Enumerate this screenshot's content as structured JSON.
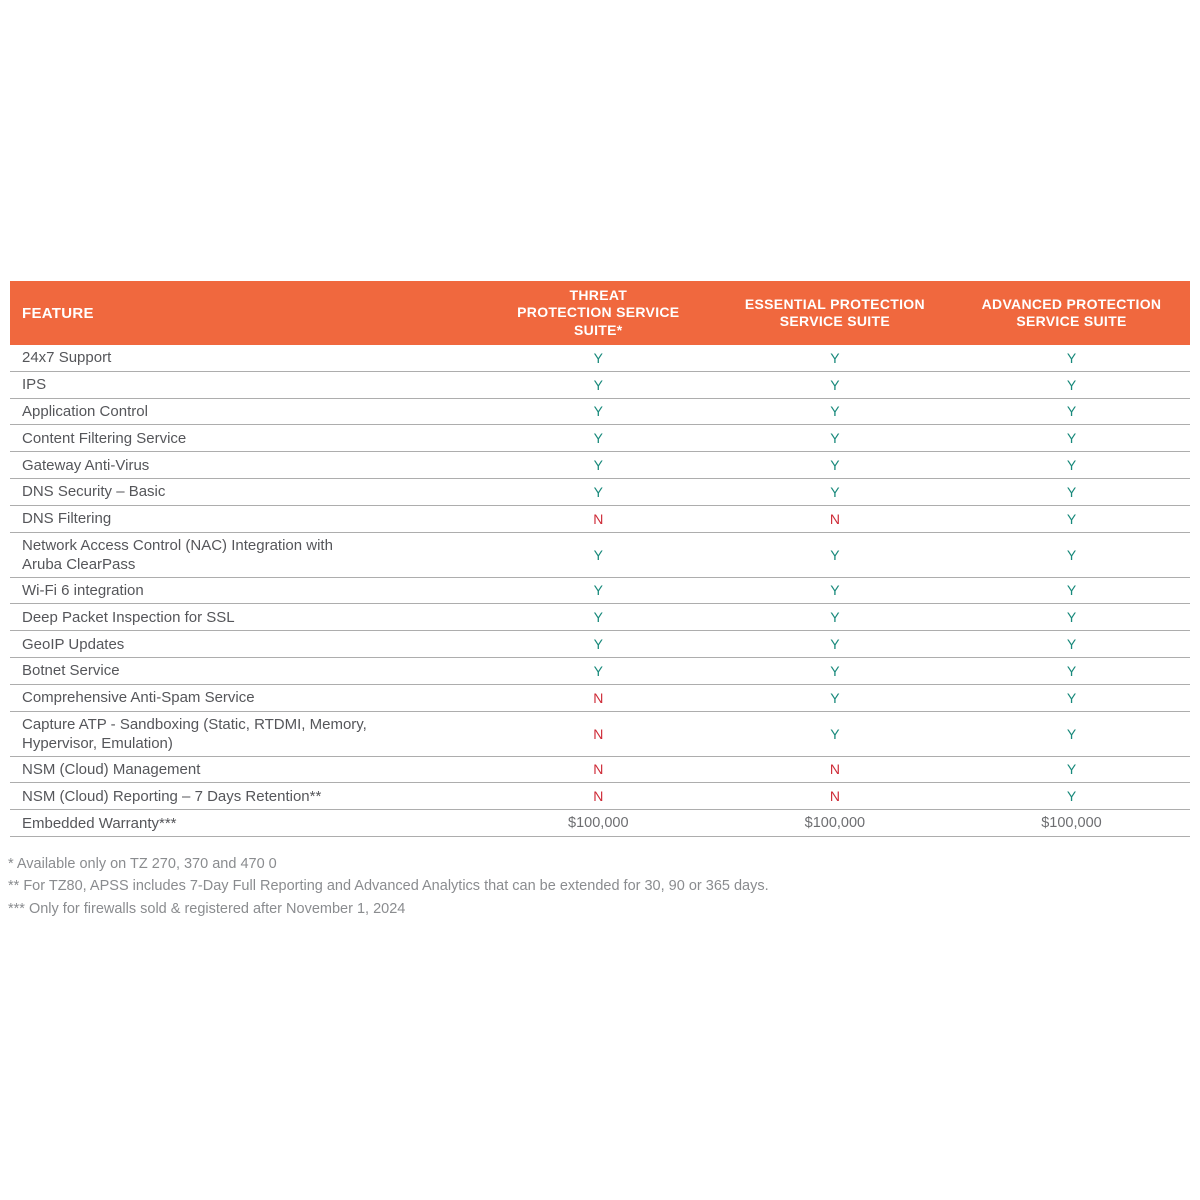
{
  "table": {
    "header": {
      "feature_label": "FEATURE",
      "columns": [
        "THREAT\nPROTECTION SERVICE\nSUITE*",
        "ESSENTIAL PROTECTION\nSERVICE SUITE",
        "ADVANCED PROTECTION\nSERVICE SUITE"
      ]
    },
    "rows": [
      {
        "feature": "24x7 Support",
        "values": [
          "Y",
          "Y",
          "Y"
        ]
      },
      {
        "feature": "IPS",
        "values": [
          "Y",
          "Y",
          "Y"
        ]
      },
      {
        "feature": "Application Control",
        "values": [
          "Y",
          "Y",
          "Y"
        ]
      },
      {
        "feature": "Content Filtering Service",
        "values": [
          "Y",
          "Y",
          "Y"
        ]
      },
      {
        "feature": "Gateway Anti-Virus",
        "values": [
          "Y",
          "Y",
          "Y"
        ]
      },
      {
        "feature": "DNS Security – Basic",
        "values": [
          "Y",
          "Y",
          "Y"
        ]
      },
      {
        "feature": "DNS Filtering",
        "values": [
          "N",
          "N",
          "Y"
        ]
      },
      {
        "feature": "Network Access Control (NAC) Integration with\nAruba ClearPass",
        "values": [
          "Y",
          "Y",
          "Y"
        ]
      },
      {
        "feature": "Wi-Fi 6 integration",
        "values": [
          "Y",
          "Y",
          "Y"
        ]
      },
      {
        "feature": "Deep Packet Inspection for SSL",
        "values": [
          "Y",
          "Y",
          "Y"
        ]
      },
      {
        "feature": "GeoIP Updates",
        "values": [
          "Y",
          "Y",
          "Y"
        ]
      },
      {
        "feature": "Botnet Service",
        "values": [
          "Y",
          "Y",
          "Y"
        ]
      },
      {
        "feature": "Comprehensive Anti-Spam Service",
        "values": [
          "N",
          "Y",
          "Y"
        ]
      },
      {
        "feature": "Capture ATP -  Sandboxing (Static, RTDMI, Memory,\nHypervisor, Emulation)",
        "values": [
          "N",
          "Y",
          "Y"
        ]
      },
      {
        "feature": "NSM (Cloud) Management",
        "values": [
          "N",
          "N",
          "Y"
        ]
      },
      {
        "feature": "NSM (Cloud) Reporting – 7 Days Retention**",
        "values": [
          "N",
          "N",
          "Y"
        ]
      },
      {
        "feature": "Embedded Warranty***",
        "values": [
          "$100,000",
          "$100,000",
          "$100,000"
        ]
      }
    ]
  },
  "footnotes": [
    "* Available only on TZ 270, 370 and 470 0",
    "** For TZ80, APSS includes 7-Day Full Reporting and Advanced Analytics that can be extended for 30, 90 or 365 days.",
    "*** Only for firewalls sold & registered after November 1, 2024"
  ],
  "colors": {
    "header_bg": "#F0683E",
    "yes": "#18897B",
    "no": "#CE2B37",
    "money": "#6D6E71"
  }
}
